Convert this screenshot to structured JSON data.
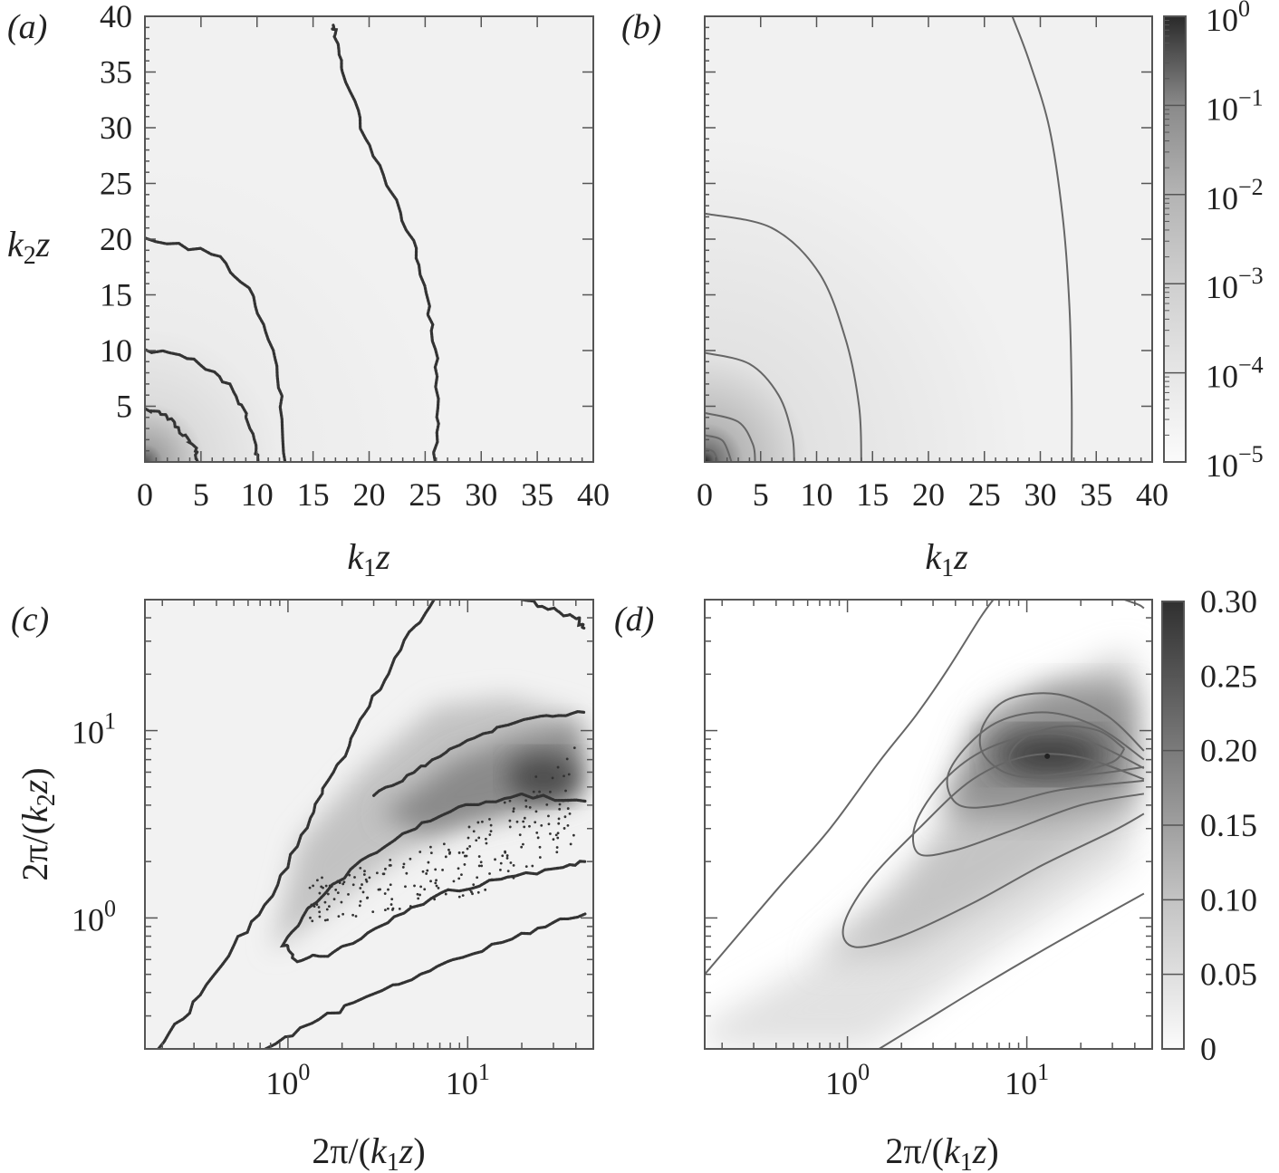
{
  "chart_data": [
    {
      "panel": "(a)",
      "type": "heatmap",
      "xlabel": "k1z",
      "ylabel": "k2z",
      "xlim": [
        0,
        40
      ],
      "ylim": [
        0,
        40
      ],
      "x_ticks": [
        "0",
        "5",
        "10",
        "15",
        "20",
        "25",
        "30",
        "35",
        "40"
      ],
      "y_ticks": [
        "5",
        "10",
        "15",
        "20",
        "25",
        "30",
        "35",
        "40"
      ],
      "contours": [
        {
          "name": "c1",
          "points": [
            [
              0,
              4.8
            ],
            [
              2.2,
              4.0
            ],
            [
              3.5,
              2.5
            ],
            [
              4.4,
              1.2
            ],
            [
              4.7,
              0
            ]
          ]
        },
        {
          "name": "c2",
          "points": [
            [
              0,
              10.1
            ],
            [
              4.5,
              9.2
            ],
            [
              7.6,
              6.8
            ],
            [
              9.2,
              4.0
            ],
            [
              9.9,
              1.5
            ],
            [
              10.1,
              0
            ]
          ]
        },
        {
          "name": "c3",
          "points": [
            [
              0,
              20.1
            ],
            [
              6.0,
              18.8
            ],
            [
              9.2,
              15.5
            ],
            [
              11.2,
              11.0
            ],
            [
              12.1,
              6.0
            ],
            [
              12.5,
              0
            ]
          ]
        },
        {
          "name": "c4",
          "points": [
            [
              16.8,
              39.2
            ],
            [
              17.0,
              38.0
            ],
            [
              17.8,
              35.0
            ],
            [
              19.4,
              30.0
            ],
            [
              21.7,
              25.0
            ],
            [
              23.8,
              20.0
            ],
            [
              25.2,
              15.0
            ],
            [
              25.9,
              10.0
            ],
            [
              26.1,
              5.0
            ],
            [
              25.9,
              0
            ]
          ]
        }
      ],
      "color_scale": "log",
      "noisy": true
    },
    {
      "panel": "(b)",
      "type": "heatmap",
      "xlabel": "k1z",
      "xlim": [
        0,
        40
      ],
      "ylim": [
        0,
        40
      ],
      "x_ticks": [
        "0",
        "5",
        "10",
        "15",
        "20",
        "25",
        "30",
        "35",
        "40"
      ],
      "contours": [
        {
          "name": "c1",
          "points": [
            [
              0,
              1.2
            ],
            [
              0.8,
              0.9
            ],
            [
              1.2,
              0
            ]
          ]
        },
        {
          "name": "c2",
          "points": [
            [
              0,
              2.4
            ],
            [
              1.6,
              1.9
            ],
            [
              2.4,
              0
            ]
          ]
        },
        {
          "name": "c3",
          "points": [
            [
              0,
              4.4
            ],
            [
              3.0,
              3.6
            ],
            [
              4.3,
              1.6
            ],
            [
              4.5,
              0
            ]
          ]
        },
        {
          "name": "c4",
          "points": [
            [
              0,
              9.8
            ],
            [
              4.0,
              8.8
            ],
            [
              6.6,
              6.0
            ],
            [
              7.8,
              2.5
            ],
            [
              8.0,
              0
            ]
          ]
        },
        {
          "name": "c5",
          "points": [
            [
              0,
              22.3
            ],
            [
              6.0,
              21.0
            ],
            [
              10.2,
              17.0
            ],
            [
              12.6,
              11.0
            ],
            [
              13.8,
              5.0
            ],
            [
              14.0,
              0
            ]
          ]
        },
        {
          "name": "c6",
          "points": [
            [
              27.5,
              40
            ],
            [
              29.0,
              36.0
            ],
            [
              30.8,
              30.0
            ],
            [
              32.0,
              22.0
            ],
            [
              32.6,
              14.0
            ],
            [
              32.8,
              6.0
            ],
            [
              32.8,
              0
            ]
          ]
        }
      ],
      "color_scale": "log",
      "colorbar": {
        "ticks": [
          "10",
          "10",
          "10",
          "10",
          "10",
          "10"
        ],
        "tick_exponents": [
          "0",
          "−1",
          "−2",
          "−3",
          "−4",
          "−5"
        ],
        "scale": "log",
        "range": [
          1e-05,
          1
        ]
      }
    },
    {
      "panel": "(c)",
      "type": "heatmap",
      "xlabel": "2π/(k1z)",
      "ylabel": "2π/(k2z)",
      "x_scale": "log",
      "y_scale": "log",
      "xlim": [
        0.16,
        50
      ],
      "ylim": [
        0.2,
        50
      ],
      "x_ticks": [
        "10",
        "10"
      ],
      "x_tick_exponents": [
        "0",
        "1"
      ],
      "y_ticks": [
        "10",
        "10"
      ],
      "y_tick_exponents": [
        "0",
        "1"
      ],
      "contours": [
        {
          "name": "outer-upper",
          "points": [
            [
              0.19,
              0.2
            ],
            [
              0.3,
              0.35
            ],
            [
              0.5,
              0.7
            ],
            [
              0.8,
              1.3
            ],
            [
              1.2,
              2.8
            ],
            [
              1.6,
              5.0
            ],
            [
              2.3,
              9.0
            ],
            [
              3.2,
              17.0
            ],
            [
              4.5,
              30.0
            ],
            [
              6.5,
              50.0
            ]
          ]
        },
        {
          "name": "outer-lower",
          "points": [
            [
              0.75,
              0.2
            ],
            [
              1.5,
              0.29
            ],
            [
              3.0,
              0.39
            ],
            [
              6.0,
              0.52
            ],
            [
              12.0,
              0.68
            ],
            [
              25.0,
              0.88
            ],
            [
              45.0,
              1.05
            ]
          ]
        },
        {
          "name": "inner-loop",
          "points": [
            [
              45.0,
              4.2
            ],
            [
              20.0,
              4.5
            ],
            [
              10.0,
              4.0
            ],
            [
              5.0,
              3.0
            ],
            [
              2.5,
              2.0
            ],
            [
              1.3,
              1.1
            ],
            [
              0.95,
              0.72
            ],
            [
              1.1,
              0.6
            ],
            [
              1.8,
              0.65
            ],
            [
              3.5,
              0.95
            ],
            [
              7.0,
              1.35
            ],
            [
              15.0,
              1.6
            ],
            [
              30.0,
              1.8
            ],
            [
              45.0,
              2.0
            ]
          ]
        },
        {
          "name": "upper-band",
          "points": [
            [
              3.0,
              4.5
            ],
            [
              5.0,
              6.0
            ],
            [
              8.0,
              8.0
            ],
            [
              15.0,
              10.5
            ],
            [
              28.0,
              12.0
            ],
            [
              45.0,
              12.5
            ]
          ]
        },
        {
          "name": "top-edge",
          "points": [
            [
              20.0,
              50.0
            ],
            [
              30.0,
              44.0
            ],
            [
              40.0,
              40.0
            ],
            [
              45.0,
              35.0
            ]
          ]
        }
      ],
      "color_scale": "linear",
      "noisy": true
    },
    {
      "panel": "(d)",
      "type": "heatmap",
      "xlabel": "2π/(k1z)",
      "x_scale": "log",
      "y_scale": "log",
      "xlim": [
        0.16,
        50
      ],
      "ylim": [
        0.2,
        50
      ],
      "x_ticks": [
        "10",
        "10"
      ],
      "x_tick_exponents": [
        "0",
        "1"
      ],
      "contours": [
        {
          "name": "level-1-upper",
          "points": [
            [
              0.16,
              0.5
            ],
            [
              0.4,
              1.4
            ],
            [
              0.8,
              3.0
            ],
            [
              1.5,
              6.8
            ],
            [
              2.4,
              12.0
            ],
            [
              3.6,
              21.0
            ],
            [
              5.5,
              40.0
            ],
            [
              6.5,
              50.0
            ]
          ]
        },
        {
          "name": "level-1-lower",
          "points": [
            [
              1.5,
              0.2
            ],
            [
              3.0,
              0.3
            ],
            [
              6.0,
              0.45
            ],
            [
              15.0,
              0.75
            ],
            [
              45.0,
              1.35
            ]
          ]
        },
        {
          "name": "level-2",
          "points": [
            [
              45.0,
              5.5
            ],
            [
              20.0,
              7.2
            ],
            [
              10.0,
              7.3
            ],
            [
              5.0,
              5.5
            ],
            [
              2.5,
              3.0
            ],
            [
              1.3,
              1.55
            ],
            [
              0.95,
              0.9
            ],
            [
              1.1,
              0.7
            ],
            [
              2.0,
              0.8
            ],
            [
              5.0,
              1.2
            ],
            [
              12.0,
              1.9
            ],
            [
              30.0,
              2.9
            ],
            [
              45.0,
              3.6
            ]
          ]
        },
        {
          "name": "level-3",
          "points": [
            [
              45.0,
              6.3
            ],
            [
              22.0,
              8.8
            ],
            [
              12.0,
              9.6
            ],
            [
              6.0,
              8.0
            ],
            [
              3.5,
              5.5
            ],
            [
              2.4,
              3.2
            ],
            [
              2.5,
              2.2
            ],
            [
              4.0,
              2.3
            ],
            [
              8.0,
              2.9
            ],
            [
              20.0,
              4.0
            ],
            [
              45.0,
              4.6
            ]
          ]
        },
        {
          "name": "level-4",
          "points": [
            [
              45.0,
              7.0
            ],
            [
              25.0,
              10.4
            ],
            [
              13.0,
              12.5
            ],
            [
              7.0,
              11.2
            ],
            [
              4.5,
              8.0
            ],
            [
              3.6,
              5.5
            ],
            [
              4.2,
              4.0
            ],
            [
              7.0,
              4.0
            ],
            [
              15.0,
              4.8
            ],
            [
              45.0,
              5.4
            ]
          ]
        },
        {
          "name": "level-5",
          "points": [
            [
              45.0,
              7.8
            ],
            [
              28.0,
              12.0
            ],
            [
              15.0,
              15.6
            ],
            [
              8.0,
              14.8
            ],
            [
              5.8,
              11.0
            ],
            [
              5.6,
              7.8
            ],
            [
              7.5,
              6.0
            ],
            [
              12.0,
              5.6
            ],
            [
              25.0,
              5.9
            ],
            [
              45.0,
              6.4
            ]
          ]
        },
        {
          "name": "level-6",
          "points": [
            [
              35.0,
              8.0
            ],
            [
              25.0,
              10.0
            ],
            [
              15.0,
              10.5
            ],
            [
              9.5,
              9.0
            ],
            [
              8.0,
              7.0
            ],
            [
              10.0,
              5.8
            ],
            [
              18.0,
              6.0
            ],
            [
              30.0,
              6.8
            ],
            [
              35.0,
              8.0
            ]
          ]
        },
        {
          "name": "top-edge",
          "points": [
            [
              35.0,
              50.0
            ],
            [
              42.0,
              47.0
            ],
            [
              45.0,
              45.0
            ]
          ]
        }
      ],
      "peak": {
        "x": 13.0,
        "y": 7.3
      },
      "color_scale": "linear",
      "colorbar": {
        "ticks": [
          "0.30",
          "0.25",
          "0.20",
          "0.15",
          "0.10",
          "0.05",
          "0"
        ],
        "scale": "linear",
        "range": [
          0,
          0.3
        ]
      }
    }
  ]
}
